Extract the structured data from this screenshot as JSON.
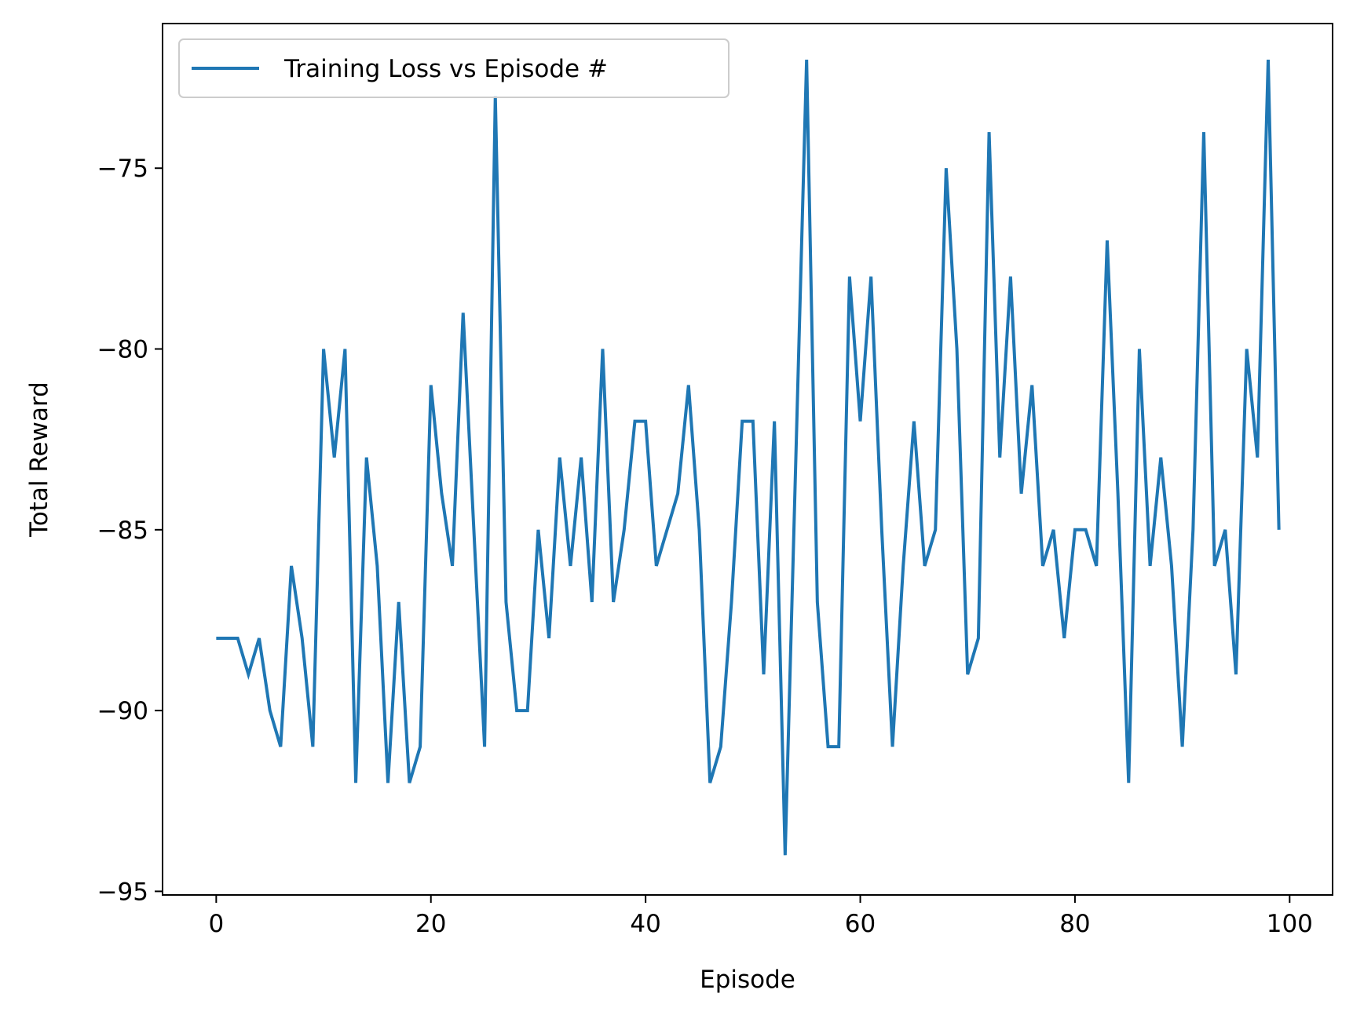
{
  "chart_data": {
    "type": "line",
    "xlabel": "Episode",
    "ylabel": "Total Reward",
    "xlim": [
      -5,
      104
    ],
    "ylim": [
      -95.1,
      -71.0
    ],
    "xticks": [
      0,
      20,
      40,
      60,
      80,
      100
    ],
    "yticks": [
      -95,
      -90,
      -85,
      -80,
      -75
    ],
    "xtick_labels": [
      "0",
      "20",
      "40",
      "60",
      "80",
      "100"
    ],
    "ytick_labels": [
      "−95",
      "−90",
      "−85",
      "−80",
      "−75"
    ],
    "grid": false,
    "legend_position": "upper-left",
    "series": [
      {
        "name": "Training Loss vs Episode #",
        "color": "#1f77b4",
        "x": [
          0,
          1,
          2,
          3,
          4,
          5,
          6,
          7,
          8,
          9,
          10,
          11,
          12,
          13,
          14,
          15,
          16,
          17,
          18,
          19,
          20,
          21,
          22,
          23,
          24,
          25,
          26,
          27,
          28,
          29,
          30,
          31,
          32,
          33,
          34,
          35,
          36,
          37,
          38,
          39,
          40,
          41,
          42,
          43,
          44,
          45,
          46,
          47,
          48,
          49,
          50,
          51,
          52,
          53,
          54,
          55,
          56,
          57,
          58,
          59,
          60,
          61,
          62,
          63,
          64,
          65,
          66,
          67,
          68,
          69,
          70,
          71,
          72,
          73,
          74,
          75,
          76,
          77,
          78,
          79,
          80,
          81,
          82,
          83,
          84,
          85,
          86,
          87,
          88,
          89,
          90,
          91,
          92,
          93,
          94,
          95,
          96,
          97,
          98,
          99
        ],
        "y": [
          -88,
          -88,
          -88,
          -89,
          -88,
          -90,
          -91,
          -86,
          -88,
          -91,
          -80,
          -83,
          -80,
          -92,
          -83,
          -86,
          -92,
          -87,
          -92,
          -91,
          -81,
          -84,
          -86,
          -79,
          -85,
          -91,
          -73,
          -87,
          -90,
          -90,
          -85,
          -88,
          -83,
          -86,
          -83,
          -87,
          -80,
          -87,
          -85,
          -82,
          -82,
          -86,
          -85,
          -84,
          -81,
          -85,
          -92,
          -91,
          -87,
          -82,
          -82,
          -89,
          -82,
          -94,
          -83,
          -72,
          -87,
          -91,
          -91,
          -78,
          -82,
          -78,
          -85,
          -91,
          -86,
          -82,
          -86,
          -85,
          -75,
          -80,
          -89,
          -88,
          -74,
          -83,
          -78,
          -84,
          -81,
          -86,
          -85,
          -88,
          -85,
          -85,
          -86,
          -77,
          -84,
          -92,
          -80,
          -86,
          -83,
          -86,
          -91,
          -85,
          -74,
          -86,
          -85,
          -89,
          -80,
          -83,
          -72,
          -85
        ]
      }
    ]
  }
}
